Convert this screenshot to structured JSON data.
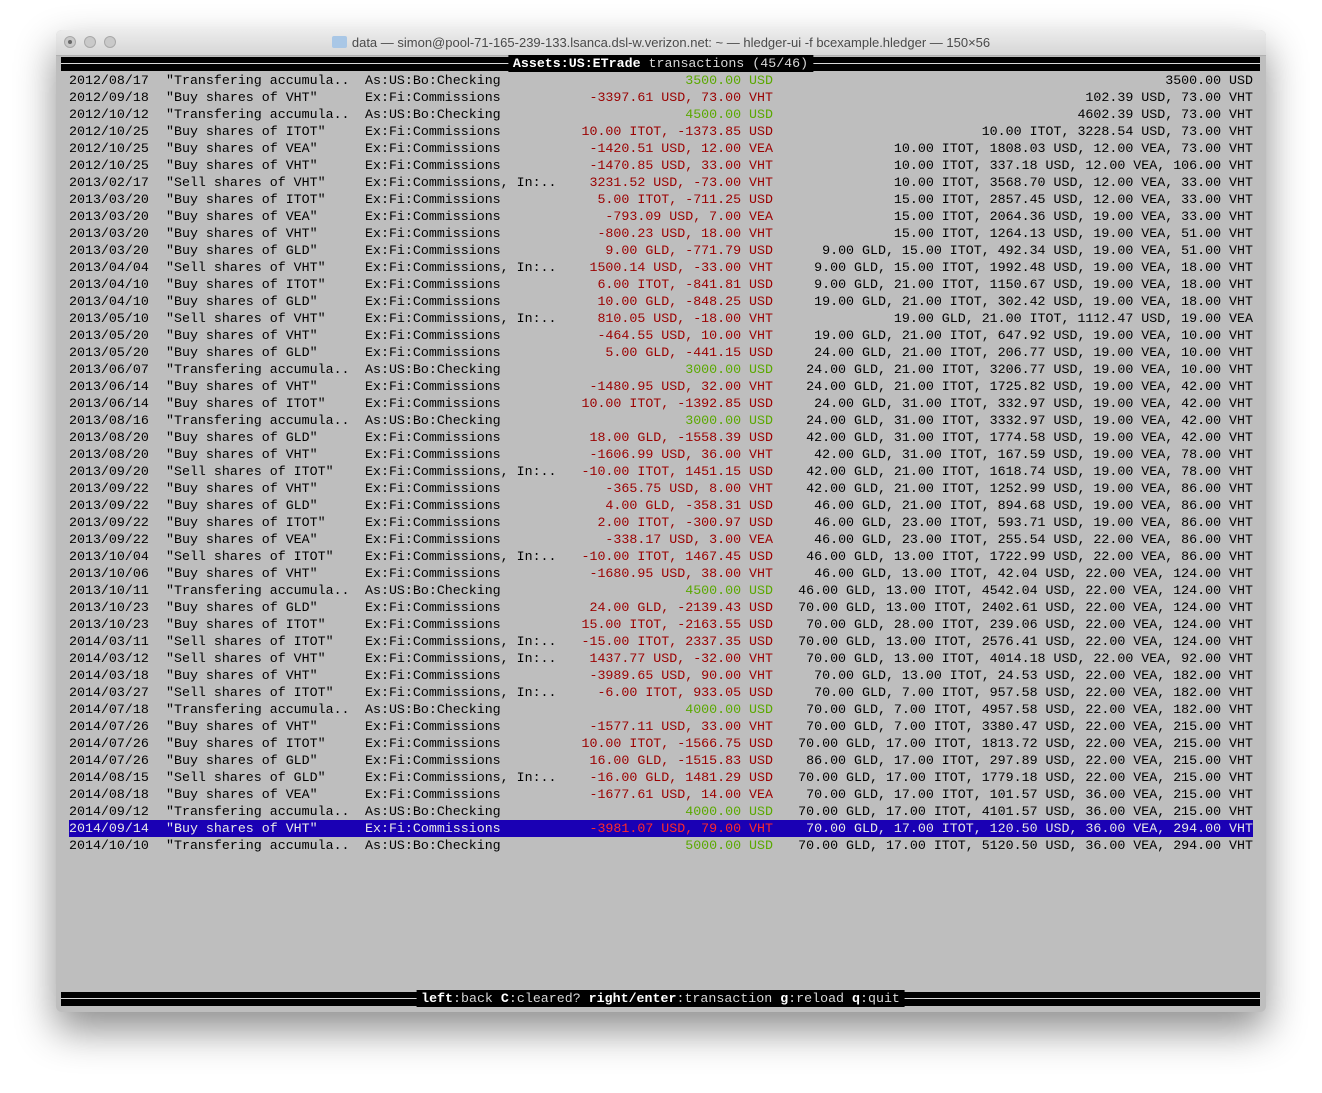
{
  "window": {
    "title": "data — simon@pool-71-165-239-133.lsanca.dsl-w.verizon.net: ~ — hledger-ui -f bcexample.hledger — 150×56"
  },
  "header": {
    "account": "Assets:US:ETrade",
    "rest": " transactions (45/46)"
  },
  "footer": {
    "keys": [
      {
        "key": "left",
        "desc": ":back "
      },
      {
        "key": "C",
        "desc": ":cleared? "
      },
      {
        "key": "right/enter",
        "desc": ":transaction "
      },
      {
        "key": "g",
        "desc": ":reload "
      },
      {
        "key": "q",
        "desc": ":quit"
      }
    ]
  },
  "colors": {
    "background": "#bebebe",
    "negative_amount": "#9a0000",
    "positive_amount": "#5aa800",
    "selection": "#1a00b4"
  },
  "selected_index": 44,
  "rows": [
    {
      "date": "2012/08/17",
      "desc": "\"Transfering accumula..",
      "acct": "As:US:Bo:Checking",
      "amt": "3500.00 USD",
      "bal": "3500.00 USD",
      "color": "green"
    },
    {
      "date": "2012/09/18",
      "desc": "\"Buy shares of VHT\"",
      "acct": "Ex:Fi:Commissions",
      "amt": "-3397.61 USD, 73.00 VHT",
      "bal": "102.39 USD, 73.00 VHT",
      "color": "red"
    },
    {
      "date": "2012/10/12",
      "desc": "\"Transfering accumula..",
      "acct": "As:US:Bo:Checking",
      "amt": "4500.00 USD",
      "bal": "4602.39 USD, 73.00 VHT",
      "color": "green"
    },
    {
      "date": "2012/10/25",
      "desc": "\"Buy shares of ITOT\"",
      "acct": "Ex:Fi:Commissions",
      "amt": "10.00 ITOT, -1373.85 USD",
      "bal": "10.00 ITOT, 3228.54 USD, 73.00 VHT",
      "color": "red"
    },
    {
      "date": "2012/10/25",
      "desc": "\"Buy shares of VEA\"",
      "acct": "Ex:Fi:Commissions",
      "amt": "-1420.51 USD, 12.00 VEA",
      "bal": "10.00 ITOT, 1808.03 USD, 12.00 VEA, 73.00 VHT",
      "color": "red"
    },
    {
      "date": "2012/10/25",
      "desc": "\"Buy shares of VHT\"",
      "acct": "Ex:Fi:Commissions",
      "amt": "-1470.85 USD, 33.00 VHT",
      "bal": "10.00 ITOT, 337.18 USD, 12.00 VEA, 106.00 VHT",
      "color": "red"
    },
    {
      "date": "2013/02/17",
      "desc": "\"Sell shares of VHT\"",
      "acct": "Ex:Fi:Commissions, In:..",
      "amt": "3231.52 USD, -73.00 VHT",
      "bal": "10.00 ITOT, 3568.70 USD, 12.00 VEA, 33.00 VHT",
      "color": "red"
    },
    {
      "date": "2013/03/20",
      "desc": "\"Buy shares of ITOT\"",
      "acct": "Ex:Fi:Commissions",
      "amt": "5.00 ITOT, -711.25 USD",
      "bal": "15.00 ITOT, 2857.45 USD, 12.00 VEA, 33.00 VHT",
      "color": "red"
    },
    {
      "date": "2013/03/20",
      "desc": "\"Buy shares of VEA\"",
      "acct": "Ex:Fi:Commissions",
      "amt": "-793.09 USD, 7.00 VEA",
      "bal": "15.00 ITOT, 2064.36 USD, 19.00 VEA, 33.00 VHT",
      "color": "red"
    },
    {
      "date": "2013/03/20",
      "desc": "\"Buy shares of VHT\"",
      "acct": "Ex:Fi:Commissions",
      "amt": "-800.23 USD, 18.00 VHT",
      "bal": "15.00 ITOT, 1264.13 USD, 19.00 VEA, 51.00 VHT",
      "color": "red"
    },
    {
      "date": "2013/03/20",
      "desc": "\"Buy shares of GLD\"",
      "acct": "Ex:Fi:Commissions",
      "amt": "9.00 GLD, -771.79 USD",
      "bal": "9.00 GLD, 15.00 ITOT, 492.34 USD, 19.00 VEA, 51.00 VHT",
      "color": "red"
    },
    {
      "date": "2013/04/04",
      "desc": "\"Sell shares of VHT\"",
      "acct": "Ex:Fi:Commissions, In:..",
      "amt": "1500.14 USD, -33.00 VHT",
      "bal": "9.00 GLD, 15.00 ITOT, 1992.48 USD, 19.00 VEA, 18.00 VHT",
      "color": "red"
    },
    {
      "date": "2013/04/10",
      "desc": "\"Buy shares of ITOT\"",
      "acct": "Ex:Fi:Commissions",
      "amt": "6.00 ITOT, -841.81 USD",
      "bal": "9.00 GLD, 21.00 ITOT, 1150.67 USD, 19.00 VEA, 18.00 VHT",
      "color": "red"
    },
    {
      "date": "2013/04/10",
      "desc": "\"Buy shares of GLD\"",
      "acct": "Ex:Fi:Commissions",
      "amt": "10.00 GLD, -848.25 USD",
      "bal": "19.00 GLD, 21.00 ITOT, 302.42 USD, 19.00 VEA, 18.00 VHT",
      "color": "red"
    },
    {
      "date": "2013/05/10",
      "desc": "\"Sell shares of VHT\"",
      "acct": "Ex:Fi:Commissions, In:..",
      "amt": "810.05 USD, -18.00 VHT",
      "bal": "19.00 GLD, 21.00 ITOT, 1112.47 USD, 19.00 VEA",
      "color": "red"
    },
    {
      "date": "2013/05/20",
      "desc": "\"Buy shares of VHT\"",
      "acct": "Ex:Fi:Commissions",
      "amt": "-464.55 USD, 10.00 VHT",
      "bal": "19.00 GLD, 21.00 ITOT, 647.92 USD, 19.00 VEA, 10.00 VHT",
      "color": "red"
    },
    {
      "date": "2013/05/20",
      "desc": "\"Buy shares of GLD\"",
      "acct": "Ex:Fi:Commissions",
      "amt": "5.00 GLD, -441.15 USD",
      "bal": "24.00 GLD, 21.00 ITOT, 206.77 USD, 19.00 VEA, 10.00 VHT",
      "color": "red"
    },
    {
      "date": "2013/06/07",
      "desc": "\"Transfering accumula..",
      "acct": "As:US:Bo:Checking",
      "amt": "3000.00 USD",
      "bal": "24.00 GLD, 21.00 ITOT, 3206.77 USD, 19.00 VEA, 10.00 VHT",
      "color": "green"
    },
    {
      "date": "2013/06/14",
      "desc": "\"Buy shares of VHT\"",
      "acct": "Ex:Fi:Commissions",
      "amt": "-1480.95 USD, 32.00 VHT",
      "bal": "24.00 GLD, 21.00 ITOT, 1725.82 USD, 19.00 VEA, 42.00 VHT",
      "color": "red"
    },
    {
      "date": "2013/06/14",
      "desc": "\"Buy shares of ITOT\"",
      "acct": "Ex:Fi:Commissions",
      "amt": "10.00 ITOT, -1392.85 USD",
      "bal": "24.00 GLD, 31.00 ITOT, 332.97 USD, 19.00 VEA, 42.00 VHT",
      "color": "red"
    },
    {
      "date": "2013/08/16",
      "desc": "\"Transfering accumula..",
      "acct": "As:US:Bo:Checking",
      "amt": "3000.00 USD",
      "bal": "24.00 GLD, 31.00 ITOT, 3332.97 USD, 19.00 VEA, 42.00 VHT",
      "color": "green"
    },
    {
      "date": "2013/08/20",
      "desc": "\"Buy shares of GLD\"",
      "acct": "Ex:Fi:Commissions",
      "amt": "18.00 GLD, -1558.39 USD",
      "bal": "42.00 GLD, 31.00 ITOT, 1774.58 USD, 19.00 VEA, 42.00 VHT",
      "color": "red"
    },
    {
      "date": "2013/08/20",
      "desc": "\"Buy shares of VHT\"",
      "acct": "Ex:Fi:Commissions",
      "amt": "-1606.99 USD, 36.00 VHT",
      "bal": "42.00 GLD, 31.00 ITOT, 167.59 USD, 19.00 VEA, 78.00 VHT",
      "color": "red"
    },
    {
      "date": "2013/09/20",
      "desc": "\"Sell shares of ITOT\"",
      "acct": "Ex:Fi:Commissions, In:..",
      "amt": "-10.00 ITOT, 1451.15 USD",
      "bal": "42.00 GLD, 21.00 ITOT, 1618.74 USD, 19.00 VEA, 78.00 VHT",
      "color": "red"
    },
    {
      "date": "2013/09/22",
      "desc": "\"Buy shares of VHT\"",
      "acct": "Ex:Fi:Commissions",
      "amt": "-365.75 USD, 8.00 VHT",
      "bal": "42.00 GLD, 21.00 ITOT, 1252.99 USD, 19.00 VEA, 86.00 VHT",
      "color": "red"
    },
    {
      "date": "2013/09/22",
      "desc": "\"Buy shares of GLD\"",
      "acct": "Ex:Fi:Commissions",
      "amt": "4.00 GLD, -358.31 USD",
      "bal": "46.00 GLD, 21.00 ITOT, 894.68 USD, 19.00 VEA, 86.00 VHT",
      "color": "red"
    },
    {
      "date": "2013/09/22",
      "desc": "\"Buy shares of ITOT\"",
      "acct": "Ex:Fi:Commissions",
      "amt": "2.00 ITOT, -300.97 USD",
      "bal": "46.00 GLD, 23.00 ITOT, 593.71 USD, 19.00 VEA, 86.00 VHT",
      "color": "red"
    },
    {
      "date": "2013/09/22",
      "desc": "\"Buy shares of VEA\"",
      "acct": "Ex:Fi:Commissions",
      "amt": "-338.17 USD, 3.00 VEA",
      "bal": "46.00 GLD, 23.00 ITOT, 255.54 USD, 22.00 VEA, 86.00 VHT",
      "color": "red"
    },
    {
      "date": "2013/10/04",
      "desc": "\"Sell shares of ITOT\"",
      "acct": "Ex:Fi:Commissions, In:..",
      "amt": "-10.00 ITOT, 1467.45 USD",
      "bal": "46.00 GLD, 13.00 ITOT, 1722.99 USD, 22.00 VEA, 86.00 VHT",
      "color": "red"
    },
    {
      "date": "2013/10/06",
      "desc": "\"Buy shares of VHT\"",
      "acct": "Ex:Fi:Commissions",
      "amt": "-1680.95 USD, 38.00 VHT",
      "bal": "46.00 GLD, 13.00 ITOT, 42.04 USD, 22.00 VEA, 124.00 VHT",
      "color": "red"
    },
    {
      "date": "2013/10/11",
      "desc": "\"Transfering accumula..",
      "acct": "As:US:Bo:Checking",
      "amt": "4500.00 USD",
      "bal": "46.00 GLD, 13.00 ITOT, 4542.04 USD, 22.00 VEA, 124.00 VHT",
      "color": "green"
    },
    {
      "date": "2013/10/23",
      "desc": "\"Buy shares of GLD\"",
      "acct": "Ex:Fi:Commissions",
      "amt": "24.00 GLD, -2139.43 USD",
      "bal": "70.00 GLD, 13.00 ITOT, 2402.61 USD, 22.00 VEA, 124.00 VHT",
      "color": "red"
    },
    {
      "date": "2013/10/23",
      "desc": "\"Buy shares of ITOT\"",
      "acct": "Ex:Fi:Commissions",
      "amt": "15.00 ITOT, -2163.55 USD",
      "bal": "70.00 GLD, 28.00 ITOT, 239.06 USD, 22.00 VEA, 124.00 VHT",
      "color": "red"
    },
    {
      "date": "2014/03/11",
      "desc": "\"Sell shares of ITOT\"",
      "acct": "Ex:Fi:Commissions, In:..",
      "amt": "-15.00 ITOT, 2337.35 USD",
      "bal": "70.00 GLD, 13.00 ITOT, 2576.41 USD, 22.00 VEA, 124.00 VHT",
      "color": "red"
    },
    {
      "date": "2014/03/12",
      "desc": "\"Sell shares of VHT\"",
      "acct": "Ex:Fi:Commissions, In:..",
      "amt": "1437.77 USD, -32.00 VHT",
      "bal": "70.00 GLD, 13.00 ITOT, 4014.18 USD, 22.00 VEA, 92.00 VHT",
      "color": "red"
    },
    {
      "date": "2014/03/18",
      "desc": "\"Buy shares of VHT\"",
      "acct": "Ex:Fi:Commissions",
      "amt": "-3989.65 USD, 90.00 VHT",
      "bal": "70.00 GLD, 13.00 ITOT, 24.53 USD, 22.00 VEA, 182.00 VHT",
      "color": "red"
    },
    {
      "date": "2014/03/27",
      "desc": "\"Sell shares of ITOT\"",
      "acct": "Ex:Fi:Commissions, In:..",
      "amt": "-6.00 ITOT, 933.05 USD",
      "bal": "70.00 GLD, 7.00 ITOT, 957.58 USD, 22.00 VEA, 182.00 VHT",
      "color": "red"
    },
    {
      "date": "2014/07/18",
      "desc": "\"Transfering accumula..",
      "acct": "As:US:Bo:Checking",
      "amt": "4000.00 USD",
      "bal": "70.00 GLD, 7.00 ITOT, 4957.58 USD, 22.00 VEA, 182.00 VHT",
      "color": "green"
    },
    {
      "date": "2014/07/26",
      "desc": "\"Buy shares of VHT\"",
      "acct": "Ex:Fi:Commissions",
      "amt": "-1577.11 USD, 33.00 VHT",
      "bal": "70.00 GLD, 7.00 ITOT, 3380.47 USD, 22.00 VEA, 215.00 VHT",
      "color": "red"
    },
    {
      "date": "2014/07/26",
      "desc": "\"Buy shares of ITOT\"",
      "acct": "Ex:Fi:Commissions",
      "amt": "10.00 ITOT, -1566.75 USD",
      "bal": "70.00 GLD, 17.00 ITOT, 1813.72 USD, 22.00 VEA, 215.00 VHT",
      "color": "red"
    },
    {
      "date": "2014/07/26",
      "desc": "\"Buy shares of GLD\"",
      "acct": "Ex:Fi:Commissions",
      "amt": "16.00 GLD, -1515.83 USD",
      "bal": "86.00 GLD, 17.00 ITOT, 297.89 USD, 22.00 VEA, 215.00 VHT",
      "color": "red"
    },
    {
      "date": "2014/08/15",
      "desc": "\"Sell shares of GLD\"",
      "acct": "Ex:Fi:Commissions, In:..",
      "amt": "-16.00 GLD, 1481.29 USD",
      "bal": "70.00 GLD, 17.00 ITOT, 1779.18 USD, 22.00 VEA, 215.00 VHT",
      "color": "red"
    },
    {
      "date": "2014/08/18",
      "desc": "\"Buy shares of VEA\"",
      "acct": "Ex:Fi:Commissions",
      "amt": "-1677.61 USD, 14.00 VEA",
      "bal": "70.00 GLD, 17.00 ITOT, 101.57 USD, 36.00 VEA, 215.00 VHT",
      "color": "red"
    },
    {
      "date": "2014/09/12",
      "desc": "\"Transfering accumula..",
      "acct": "As:US:Bo:Checking",
      "amt": "4000.00 USD",
      "bal": "70.00 GLD, 17.00 ITOT, 4101.57 USD, 36.00 VEA, 215.00 VHT",
      "color": "green"
    },
    {
      "date": "2014/09/14",
      "desc": "\"Buy shares of VHT\"",
      "acct": "Ex:Fi:Commissions",
      "amt": "-3981.07 USD, 79.00 VHT",
      "bal": "70.00 GLD, 17.00 ITOT, 120.50 USD, 36.00 VEA, 294.00 VHT",
      "color": "red"
    },
    {
      "date": "2014/10/10",
      "desc": "\"Transfering accumula..",
      "acct": "As:US:Bo:Checking",
      "amt": "5000.00 USD",
      "bal": "70.00 GLD, 17.00 ITOT, 5120.50 USD, 36.00 VEA, 294.00 VHT",
      "color": "green"
    }
  ]
}
